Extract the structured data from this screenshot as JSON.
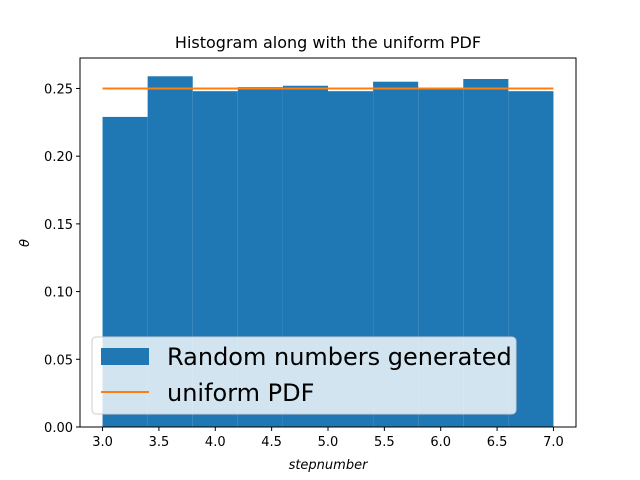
{
  "chart_data": {
    "type": "bar",
    "title": "Histogram along with the uniform PDF",
    "xlabel": "stepnumber",
    "ylabel": "θ",
    "xlim": [
      2.8,
      7.2
    ],
    "ylim": [
      0.0,
      0.2725
    ],
    "x_ticks": [
      "3.0",
      "3.5",
      "4.0",
      "4.5",
      "5.0",
      "5.5",
      "6.0",
      "6.5",
      "7.0"
    ],
    "y_ticks": [
      "0.00",
      "0.05",
      "0.10",
      "0.15",
      "0.20",
      "0.25"
    ],
    "bin_edges": [
      3.0,
      3.4,
      3.8,
      4.2,
      4.6,
      5.0,
      5.4,
      5.8,
      6.2,
      6.6,
      7.0
    ],
    "series": [
      {
        "name": "Random numbers generated",
        "type": "histogram",
        "color": "#1f77b4",
        "values": [
          0.229,
          0.259,
          0.248,
          0.251,
          0.252,
          0.248,
          0.255,
          0.25,
          0.257,
          0.248
        ]
      },
      {
        "name": "uniform PDF",
        "type": "line",
        "color": "#ff7f0e",
        "x": [
          3.0,
          7.0
        ],
        "y": [
          0.25,
          0.25
        ]
      }
    ],
    "legend_position": "lower-left",
    "grid": false
  }
}
